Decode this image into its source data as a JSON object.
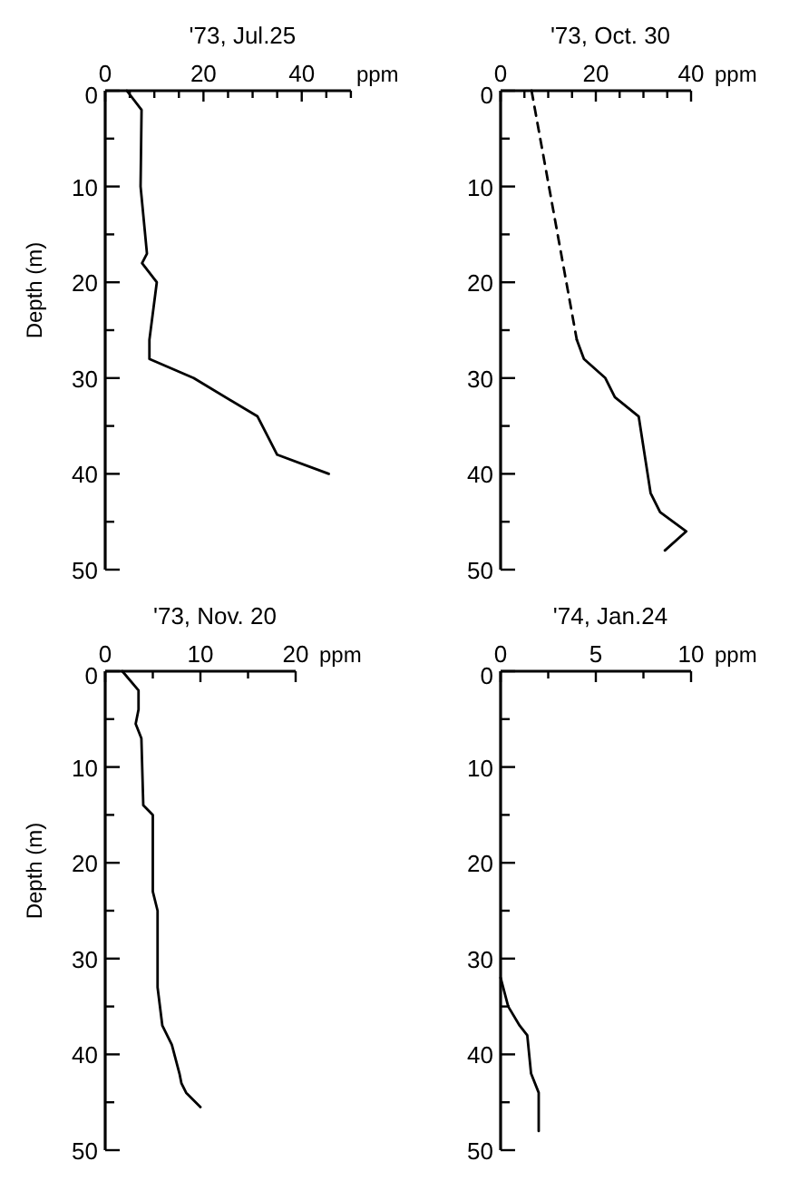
{
  "chart_data": [
    {
      "type": "line",
      "title": "'73, Jul.25",
      "xlabel": "ppm",
      "ylabel": "Depth (m)",
      "xlim": [
        0,
        50
      ],
      "xticks": [
        0,
        {
          "value": 5,
          "label": null
        },
        {
          "value": 10,
          "label": null
        },
        {
          "value": 15,
          "label": null
        },
        20,
        {
          "value": 25,
          "label": null
        },
        {
          "value": 30,
          "label": null
        },
        {
          "value": 35,
          "label": null
        },
        40,
        {
          "value": 45,
          "label": null
        },
        {
          "value": 50,
          "label": null
        }
      ],
      "ylim": [
        50,
        0
      ],
      "yticks": [
        0,
        {
          "value": 5,
          "label": null
        },
        10,
        {
          "value": 15,
          "label": null
        },
        20,
        {
          "value": 25,
          "label": null
        },
        30,
        {
          "value": 35,
          "label": null
        },
        40,
        {
          "value": 45,
          "label": null
        },
        50
      ],
      "series": [
        {
          "color": "#000000",
          "line_style": "solid",
          "x": [
            4.4,
            7.4,
            7.2,
            8.5,
            7.5,
            10.5,
            9,
            9,
            18,
            31,
            35,
            45.5
          ],
          "values": [
            0,
            2,
            10,
            17,
            18,
            20,
            26,
            28,
            30,
            34,
            38,
            40
          ]
        }
      ]
    },
    {
      "type": "line",
      "title": "'73, Oct. 30",
      "xlabel": "ppm",
      "xlim": [
        0,
        40
      ],
      "xticks": [
        0,
        {
          "value": 5,
          "label": null
        },
        {
          "value": 10,
          "label": null
        },
        {
          "value": 15,
          "label": null
        },
        20,
        {
          "value": 25,
          "label": null
        },
        {
          "value": 30,
          "label": null
        },
        {
          "value": 35,
          "label": null
        },
        40
      ],
      "ylim": [
        50,
        0
      ],
      "yticks": [
        0,
        {
          "value": 5,
          "label": null
        },
        10,
        {
          "value": 15,
          "label": null
        },
        20,
        {
          "value": 25,
          "label": null
        },
        30,
        {
          "value": 35,
          "label": null
        },
        40,
        {
          "value": 45,
          "label": null
        },
        50
      ],
      "series": [
        {
          "color": "#000000",
          "line_style": "dashed",
          "x": [
            6.5,
            16
          ],
          "values": [
            0,
            26
          ]
        },
        {
          "color": "#000000",
          "line_style": "solid",
          "x": [
            16,
            17.5,
            22,
            24,
            29,
            31.5,
            33.5,
            39,
            34.5
          ],
          "values": [
            26,
            28,
            30,
            32,
            34,
            42,
            44,
            46,
            48
          ]
        }
      ]
    },
    {
      "type": "line",
      "title": "'73, Nov. 20",
      "xlabel": "ppm",
      "ylabel": "Depth (m)",
      "xlim": [
        0,
        20
      ],
      "xticks": [
        0,
        {
          "value": 5,
          "label": null
        },
        10,
        {
          "value": 15,
          "label": null
        },
        20
      ],
      "ylim": [
        50,
        0
      ],
      "yticks": [
        0,
        {
          "value": 5,
          "label": null
        },
        10,
        {
          "value": 15,
          "label": null
        },
        20,
        {
          "value": 25,
          "label": null
        },
        30,
        {
          "value": 35,
          "label": null
        },
        40,
        {
          "value": 45,
          "label": null
        },
        50
      ],
      "series": [
        {
          "color": "#000000",
          "line_style": "solid",
          "x": [
            1.8,
            3.5,
            3.5,
            3.2,
            3.8,
            4,
            5,
            5,
            5.5,
            5.5,
            6,
            7,
            7.8,
            8,
            8.5,
            10
          ],
          "values": [
            0,
            2,
            4,
            5.5,
            7,
            14,
            15,
            23,
            25,
            33,
            37,
            39,
            42,
            43,
            44,
            45.5
          ]
        }
      ]
    },
    {
      "type": "line",
      "title": "'74, Jan.24",
      "xlabel": "ppm",
      "xlim": [
        0,
        10
      ],
      "xticks": [
        0,
        {
          "value": 2.5,
          "label": null
        },
        5,
        {
          "value": 7.5,
          "label": null
        },
        10
      ],
      "ylim": [
        50,
        0
      ],
      "yticks": [
        0,
        {
          "value": 5,
          "label": null
        },
        10,
        {
          "value": 15,
          "label": null
        },
        20,
        {
          "value": 25,
          "label": null
        },
        30,
        {
          "value": 35,
          "label": null
        },
        40,
        {
          "value": 45,
          "label": null
        },
        50
      ],
      "series": [
        {
          "color": "#000000",
          "line_style": "solid",
          "x": [
            0,
            0.4,
            1,
            1.4,
            1.6,
            2,
            2
          ],
          "values": [
            32,
            35,
            37,
            38,
            42,
            44,
            48
          ]
        }
      ]
    }
  ]
}
